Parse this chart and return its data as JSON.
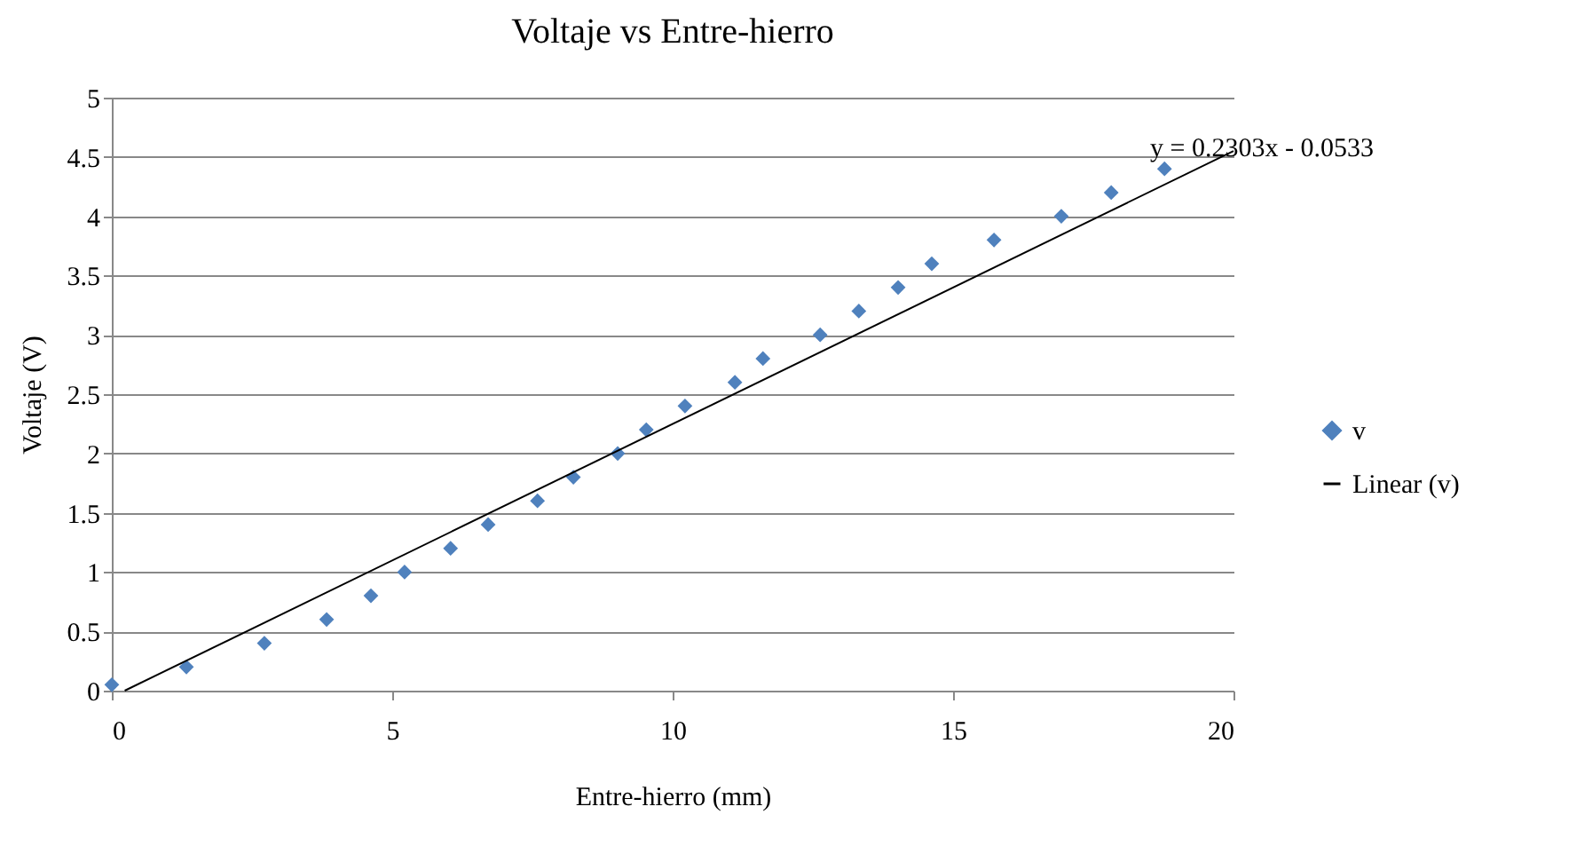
{
  "chart_data": {
    "type": "scatter",
    "title": "Voltaje vs Entre-hierro",
    "xlabel": "Entre-hierro (mm)",
    "ylabel": "Voltaje (V)",
    "xlim": [
      0,
      20
    ],
    "xticks": [
      0,
      5,
      10,
      15,
      20
    ],
    "ylim": [
      0,
      5
    ],
    "yticks": [
      0,
      0.5,
      1,
      1.5,
      2,
      2.5,
      3,
      3.5,
      4,
      4.5,
      5
    ],
    "grid": "y",
    "legend": "right",
    "annotations": [
      "y = 0.2303x - 0.0533"
    ],
    "series": [
      {
        "name": "v",
        "color": "#4f81bd",
        "marker": "diamond",
        "x": [
          0,
          1.33,
          2.72,
          3.83,
          4.62,
          5.22,
          6.04,
          6.71,
          7.59,
          8.23,
          9.02,
          9.53,
          10.22,
          11.11,
          11.61,
          12.63,
          13.32,
          14.02,
          14.62,
          15.73,
          16.93,
          17.82,
          18.77
        ],
        "values": [
          0.05,
          0.2,
          0.4,
          0.6,
          0.8,
          1.0,
          1.2,
          1.4,
          1.6,
          1.8,
          2.0,
          2.2,
          2.4,
          2.6,
          2.8,
          3.0,
          3.2,
          3.4,
          3.6,
          3.8,
          4.0,
          4.2,
          4.4
        ]
      },
      {
        "name": "Linear (v)",
        "type": "line",
        "color": "#000000",
        "line_style": "solid",
        "x": [
          0.23,
          20
        ],
        "values": [
          0,
          4.55
        ]
      }
    ]
  }
}
